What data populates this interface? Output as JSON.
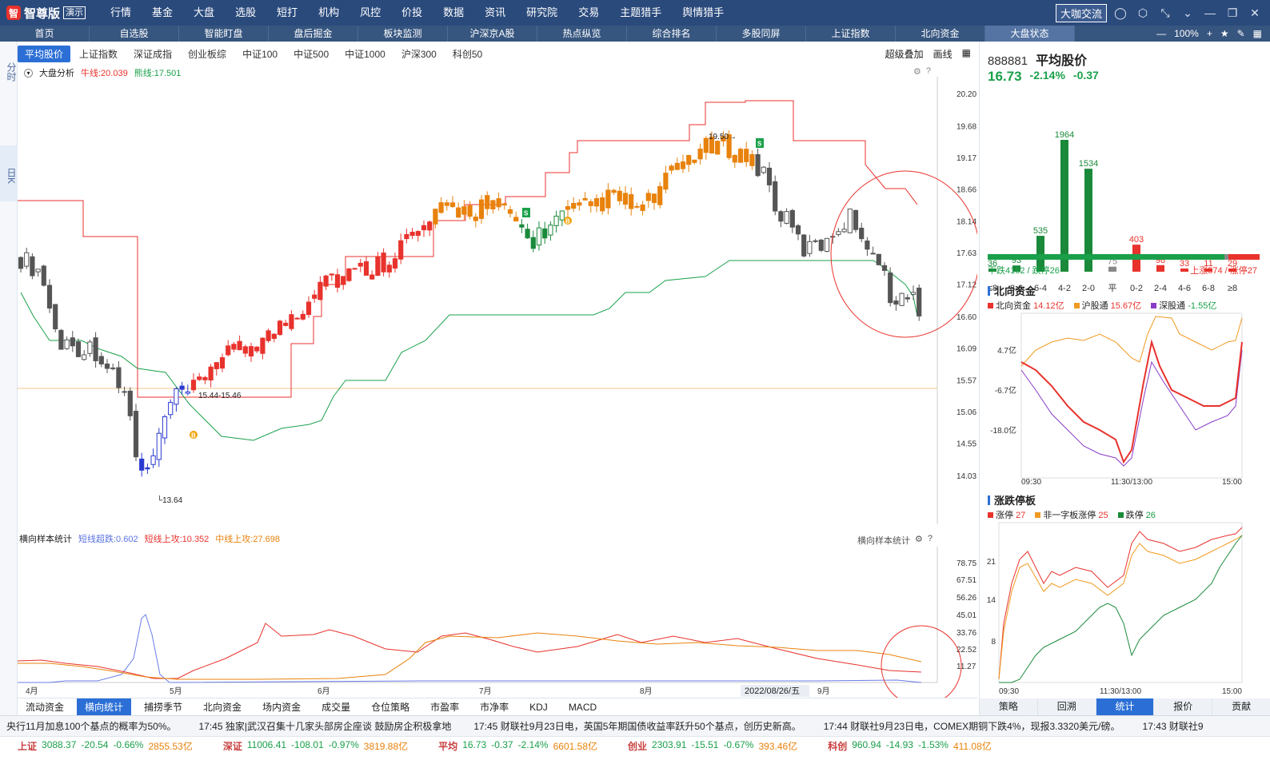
{
  "app": {
    "logo": "智尊版",
    "badge": "演示",
    "menu": [
      "行情",
      "基金",
      "大盘",
      "选股",
      "短打",
      "机构",
      "风控",
      "价投",
      "数据",
      "资讯",
      "研究院",
      "交易",
      "主题猎手",
      "舆情猎手"
    ],
    "daka": "大咖交流"
  },
  "tabs": [
    "首页",
    "自选股",
    "智能盯盘",
    "盘后掘金",
    "板块监测",
    "沪深京A股",
    "热点纵览",
    "综合排名",
    "多股同屏",
    "上证指数",
    "北向资金",
    "大盘状态"
  ],
  "active_tab": "大盘状态",
  "zoom": "100%",
  "left_rail": [
    "分时",
    "日K"
  ],
  "subtabs": [
    "平均股价",
    "上证指数",
    "深证成指",
    "创业板综",
    "中证100",
    "中证500",
    "中证1000",
    "沪深300",
    "科创50"
  ],
  "subtabs_right": [
    "超级叠加",
    "画线"
  ],
  "main_info": {
    "name": "大盘分析",
    "bull": "牛线:20.039",
    "bear": "熊线:17.501"
  },
  "chart_data": {
    "type": "candlestick",
    "yaxis_ticks": [
      "20.20",
      "19.68",
      "19.17",
      "18.66",
      "18.14",
      "17.63",
      "17.12",
      "16.60",
      "16.09",
      "15.57",
      "15.06",
      "14.55",
      "14.03"
    ],
    "xaxis_ticks": [
      "4月",
      "5月",
      "6月",
      "7月",
      "8月",
      "9月"
    ],
    "annotations": [
      "13.64",
      "15.44-15.46",
      "19.50",
      "B",
      "S",
      "2022/08/26/五"
    ],
    "ymin": 13.64,
    "ymax": 20.2
  },
  "sub_info": {
    "name": "横向样本统计",
    "a": "短线超跌:0.602",
    "b": "短线上攻:10.352",
    "c": "中线上攻:27.698"
  },
  "sub_axis": [
    "78.75",
    "67.51",
    "56.26",
    "45.01",
    "33.76",
    "22.52",
    "11.27"
  ],
  "sub_right_label": "横向样本统计",
  "bottom_tabs": [
    "流动资金",
    "横向统计",
    "捕捞季节",
    "北向资金",
    "场内资金",
    "成交量",
    "仓位策略",
    "市盈率",
    "市净率",
    "KDJ",
    "MACD"
  ],
  "active_bottom": "横向统计",
  "right": {
    "code": "888881",
    "name": "平均股价",
    "price": "16.73",
    "pct": "-2.14%",
    "chg": "-0.37",
    "dist": {
      "labels": [
        "≤8",
        "8-6",
        "6-4",
        "4-2",
        "2-0",
        "平",
        "0-2",
        "2-4",
        "4-6",
        "6-8",
        "≥8"
      ],
      "values": [
        36,
        93,
        535,
        1964,
        1534,
        75,
        403,
        98,
        33,
        11,
        29
      ]
    },
    "down_label": "下跌4162 / 跌停26",
    "up_label": "上涨574 / 涨停27",
    "north": {
      "title": "北向资金",
      "l1": "北向资金",
      "v1": "14.12亿",
      "l2": "沪股通",
      "v2": "15.67亿",
      "l3": "深股通",
      "v3": "-1.55亿",
      "ticks": [
        "4.7亿",
        "-6.7亿",
        "-18.0亿"
      ],
      "times": [
        "09:30",
        "11:30/13:00",
        "15:00"
      ]
    },
    "limit": {
      "title": "涨跌停板",
      "l1": "涨停",
      "v1": "27",
      "l2": "非一字板涨停",
      "v2": "25",
      "l3": "跌停",
      "v3": "26",
      "ticks": [
        "21",
        "14",
        "8"
      ],
      "times": [
        "09:30",
        "11:30/13:00",
        "15:00"
      ]
    },
    "tabs": [
      "策略",
      "回溯",
      "统计",
      "报价",
      "贡献"
    ],
    "active": "统计"
  },
  "ticker": [
    "央行11月加息100个基点的概率为50%。",
    "17:45 独家|武汉召集十几家头部房企座谈 鼓励房企积极拿地",
    "17:45 财联社9月23日电，英国5年期国债收益率跃升50个基点，创历史新高。",
    "17:44 财联社9月23日电，COMEX期铜下跌4%，现报3.3320美元/磅。",
    "17:43 财联社9"
  ],
  "indices": [
    {
      "n": "上证",
      "v": "3088.37",
      "c": "-20.54",
      "p": "-0.66%",
      "a": "2855.53亿"
    },
    {
      "n": "深证",
      "v": "11006.41",
      "c": "-108.01",
      "p": "-0.97%",
      "a": "3819.88亿"
    },
    {
      "n": "平均",
      "v": "16.73",
      "c": "-0.37",
      "p": "-2.14%",
      "a": "6601.58亿"
    },
    {
      "n": "创业",
      "v": "2303.91",
      "c": "-15.51",
      "p": "-0.67%",
      "a": "393.46亿"
    },
    {
      "n": "科创",
      "v": "960.94",
      "c": "-14.93",
      "p": "-1.53%",
      "a": "411.08亿"
    }
  ]
}
